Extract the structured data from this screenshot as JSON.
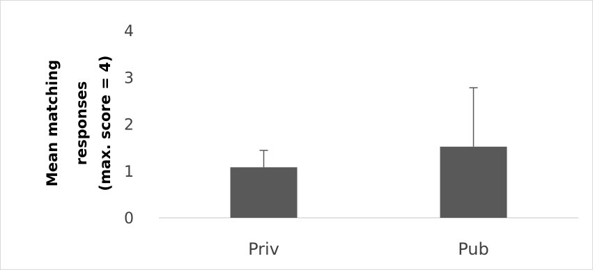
{
  "chart_data": {
    "type": "bar",
    "categories": [
      "Priv",
      "Pub"
    ],
    "values": [
      1.08,
      1.52
    ],
    "error_upper": [
      0.36,
      1.26
    ],
    "ylabel_lines": [
      "Mean matching",
      "responses",
      "(max. score = 4)"
    ],
    "ylim": [
      0,
      4
    ],
    "yticks": [
      "0",
      "1",
      "2",
      "3",
      "4"
    ],
    "grid": false,
    "bar_color": "#595959",
    "error_bar_color": "#595959",
    "axis_color": "#d9d9d9"
  }
}
